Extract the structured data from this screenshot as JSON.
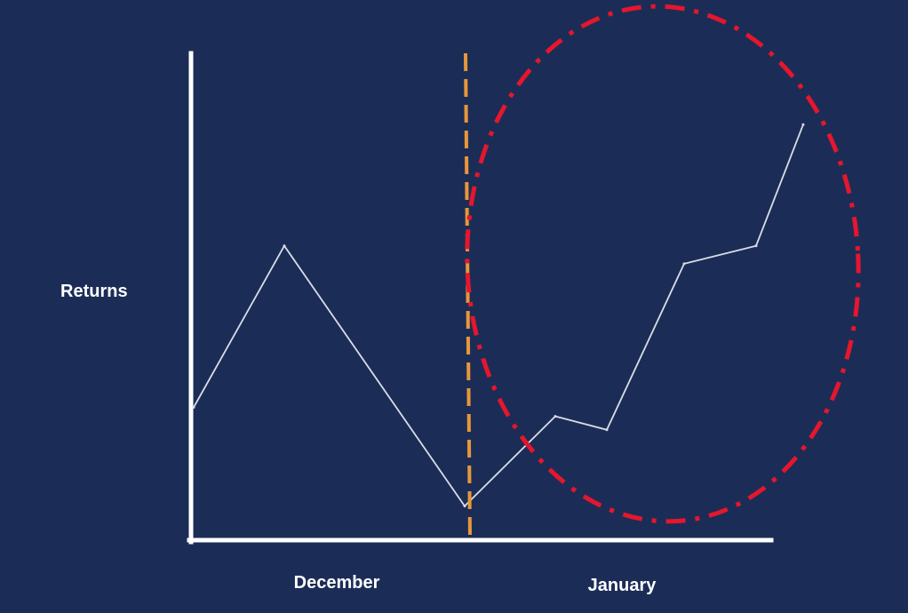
{
  "chart_data": {
    "type": "line",
    "ylabel": "Returns",
    "period_labels": [
      "December",
      "January"
    ],
    "series": [
      {
        "values": [
          3.0,
          6.6,
          0.8,
          2.8,
          2.5,
          6.2,
          6.6,
          9.3
        ]
      }
    ],
    "ylim": [
      0,
      10
    ],
    "grid": false,
    "colors": {
      "background": "#1b2d57",
      "axes": "#ffffff",
      "line": "#d9dde6",
      "divider": "#e8973a",
      "highlight": "#e5162d"
    },
    "annotations": {
      "divider": "dashed vertical line between December and January",
      "highlight": "dash-dot ellipse around January returns"
    }
  }
}
